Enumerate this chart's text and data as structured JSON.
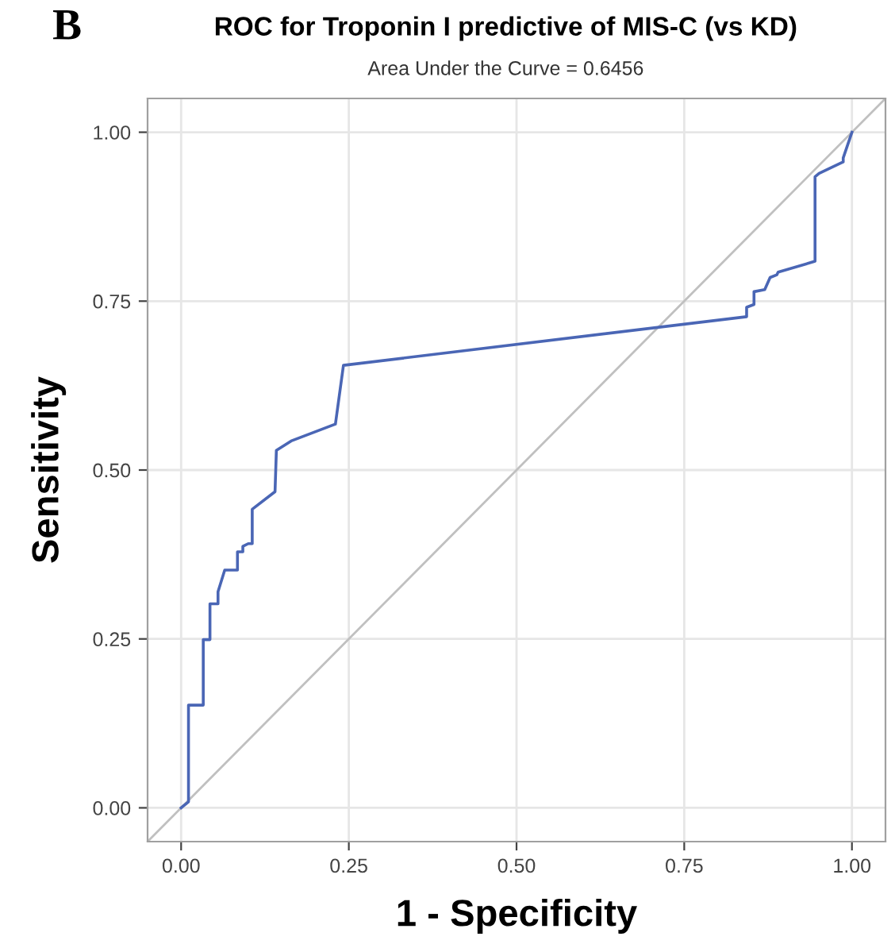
{
  "chart_data": {
    "type": "line",
    "title": "ROC for Troponin I predictive of MIS-C (vs KD)",
    "subtitle": "Area Under the Curve = 0.6456",
    "xlabel": "1 - Specificity",
    "ylabel": "Sensitivity",
    "annotations": [
      "B"
    ],
    "series": [
      {
        "color": "#4a66b5",
        "x": [
          0.0,
          0.011,
          0.011,
          0.033,
          0.033,
          0.043,
          0.043,
          0.055,
          0.055,
          0.065,
          0.084,
          0.084,
          0.092,
          0.092,
          0.1,
          0.106,
          0.106,
          0.14,
          0.142,
          0.164,
          0.23,
          0.242,
          0.843,
          0.843,
          0.854,
          0.854,
          0.87,
          0.878,
          0.888,
          0.89,
          0.945,
          0.945,
          0.951,
          0.987,
          0.987,
          1.0
        ],
        "values": [
          0.0,
          0.009,
          0.152,
          0.152,
          0.249,
          0.249,
          0.302,
          0.302,
          0.32,
          0.352,
          0.352,
          0.379,
          0.379,
          0.387,
          0.391,
          0.391,
          0.442,
          0.468,
          0.529,
          0.543,
          0.568,
          0.655,
          0.727,
          0.741,
          0.745,
          0.764,
          0.767,
          0.785,
          0.789,
          0.793,
          0.809,
          0.934,
          0.939,
          0.956,
          0.962,
          1.0
        ]
      },
      {
        "color": "#c0c0c0",
        "x": [
          -0.05,
          1.05
        ],
        "values": [
          -0.05,
          1.05
        ]
      }
    ],
    "xlim": [
      -0.05,
      1.05
    ],
    "ylim": [
      -0.05,
      1.05
    ],
    "xticks": [
      {
        "value": 0,
        "label": "0.00"
      },
      {
        "value": 0.25,
        "label": "0.25"
      },
      {
        "value": 0.5,
        "label": "0.50"
      },
      {
        "value": 0.75,
        "label": "0.75"
      },
      {
        "value": 1,
        "label": "1.00"
      }
    ],
    "yticks": [
      {
        "value": 0,
        "label": "0.00"
      },
      {
        "value": 0.25,
        "label": "0.25"
      },
      {
        "value": 0.5,
        "label": "0.50"
      },
      {
        "value": 0.75,
        "label": "0.75"
      },
      {
        "value": 1,
        "label": "1.00"
      }
    ],
    "grid": true,
    "legend": false,
    "marker": "none",
    "line_style": "solid"
  }
}
